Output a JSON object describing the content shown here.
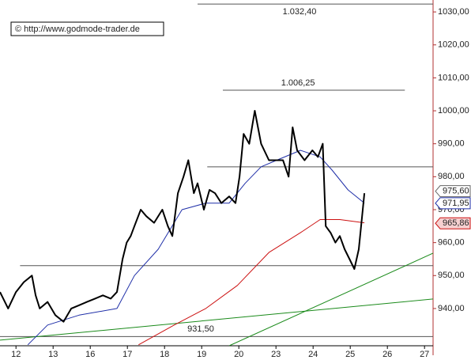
{
  "chart_data": {
    "type": "line",
    "source": "© http://www.godmode-trader.de",
    "xlim": [
      -0.43,
      11.23
    ],
    "ylim": [
      928.7,
      1032.9
    ],
    "xticks": [
      {
        "value": 0,
        "label": "12"
      },
      {
        "value": 1,
        "label": "13"
      },
      {
        "value": 2,
        "label": "16"
      },
      {
        "value": 3,
        "label": "17"
      },
      {
        "value": 4,
        "label": "18"
      },
      {
        "value": 5,
        "label": "19"
      },
      {
        "value": 6,
        "label": "20"
      },
      {
        "value": 7,
        "label": "23"
      },
      {
        "value": 8,
        "label": "24"
      },
      {
        "value": 9,
        "label": "25"
      },
      {
        "value": 10,
        "label": "26"
      },
      {
        "value": 11,
        "label": "27"
      }
    ],
    "yticks": [
      {
        "value": 940,
        "label": "940,00"
      },
      {
        "value": 950,
        "label": "950,00"
      },
      {
        "value": 960,
        "label": "960,00"
      },
      {
        "value": 970,
        "label": "970,00"
      },
      {
        "value": 980,
        "label": "980,00"
      },
      {
        "value": 990,
        "label": "990,00"
      },
      {
        "value": 1000,
        "label": "1000,00"
      },
      {
        "value": 1010,
        "label": "1010,00"
      },
      {
        "value": 1020,
        "label": "1020,00"
      },
      {
        "value": 1030,
        "label": "1030,00"
      }
    ],
    "series": [
      {
        "color": "#000000",
        "width": 2,
        "x": [
          -0.43,
          -0.21,
          0,
          0.21,
          0.43,
          0.53,
          0.64,
          0.85,
          1.06,
          1.28,
          1.49,
          1.7,
          1.91,
          2.13,
          2.34,
          2.55,
          2.72,
          2.87,
          2.98,
          3.09,
          3.19,
          3.36,
          3.51,
          3.72,
          3.94,
          4.09,
          4.21,
          4.36,
          4.51,
          4.64,
          4.79,
          4.89,
          5.06,
          5.21,
          5.36,
          5.53,
          5.74,
          5.91,
          6.02,
          6.13,
          6.28,
          6.43,
          6.6,
          6.81,
          7.02,
          7.19,
          7.34,
          7.45,
          7.57,
          7.77,
          7.98,
          8.13,
          8.26,
          8.34,
          8.47,
          8.6,
          8.72,
          8.85,
          8.98,
          9.11,
          9.23,
          9.32,
          9.38
        ],
        "values": [
          945,
          940,
          945,
          948,
          950,
          944,
          940,
          942,
          938,
          936,
          940,
          941,
          942,
          943,
          944,
          943,
          945,
          955,
          960,
          962,
          965,
          970,
          968,
          966,
          970,
          965,
          962,
          975,
          980,
          985,
          975,
          978,
          970,
          976,
          975,
          972,
          974,
          972,
          980,
          993,
          990,
          1000,
          990,
          985,
          985,
          985,
          980,
          995,
          988,
          985,
          988,
          986,
          990,
          965,
          963,
          960,
          962,
          958,
          955,
          952,
          958,
          968,
          975
        ]
      },
      {
        "color": "#1f2fa8",
        "width": 1,
        "x": [
          0.32,
          0.85,
          1.7,
          2.72,
          3.19,
          3.83,
          4.47,
          5.11,
          5.74,
          6.17,
          6.6,
          7.02,
          7.66,
          8.19,
          8.51,
          8.94,
          9.38
        ],
        "values": [
          929,
          935,
          938,
          940,
          950,
          958,
          970,
          972,
          972,
          978,
          983,
          985,
          988,
          986,
          982,
          976,
          972
        ]
      },
      {
        "color": "#cc1111",
        "width": 1,
        "x": [
          3.3,
          4.26,
          5.11,
          5.96,
          6.81,
          7.66,
          8.19,
          8.72,
          9.38
        ],
        "values": [
          929,
          935,
          940,
          947,
          957,
          963,
          967,
          967,
          966
        ]
      },
      {
        "color": "#1a8a1a",
        "width": 1,
        "x": [
          5.74,
          11.23
        ],
        "values": [
          928.7,
          956.8
        ]
      },
      {
        "color": "#1a8a1a",
        "width": 1,
        "x": [
          -0.43,
          11.23
        ],
        "values": [
          930.4,
          942.9
        ]
      }
    ],
    "levels": [
      {
        "value": 1032.4,
        "label": "1.032,40",
        "x": [
          4.89,
          11.23
        ]
      },
      {
        "value": 1006.25,
        "label": "1.006,25",
        "x": [
          5.57,
          10.47
        ]
      },
      {
        "value": 983,
        "x": [
          5.15,
          11.23
        ]
      },
      {
        "value": 953,
        "x": [
          0.11,
          11.23
        ]
      },
      {
        "value": 931.5,
        "label": "931,50",
        "x": [
          -0.43,
          11.23
        ]
      }
    ],
    "markers": [
      {
        "value": 975.6,
        "label": "975,60",
        "color": "#666666"
      },
      {
        "value": 971.95,
        "label": "971,95",
        "color": "#1f2fa8"
      },
      {
        "value": 965.86,
        "label": "965,86",
        "color": "#cc1111"
      }
    ]
  }
}
